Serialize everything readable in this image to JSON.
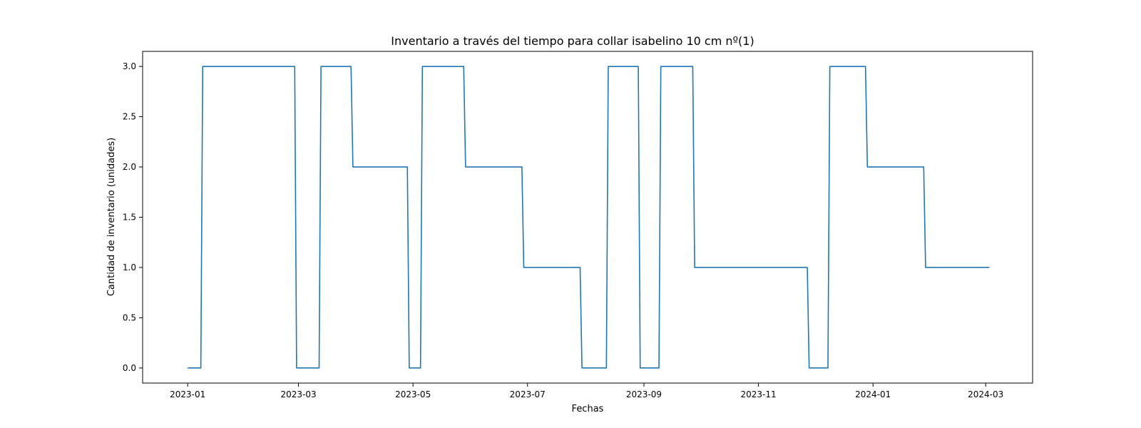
{
  "chart_data": {
    "type": "line",
    "title": "Inventario a través del tiempo para collar isabelino 10 cm nº(1)",
    "xlabel": "Fechas",
    "ylabel": "Cantidad de inventario (unidades)",
    "xlim": [
      "2022-12-08",
      "2024-03-26"
    ],
    "ylim": [
      -0.15,
      3.15
    ],
    "grid": false,
    "x_ticks": [
      "2023-01-01",
      "2023-03-01",
      "2023-05-01",
      "2023-07-01",
      "2023-09-01",
      "2023-11-01",
      "2024-01-01",
      "2024-03-01"
    ],
    "x_tick_labels": [
      "2023-01",
      "2023-03",
      "2023-05",
      "2023-07",
      "2023-09",
      "2023-11",
      "2024-01",
      "2024-03"
    ],
    "y_ticks": [
      0.0,
      0.5,
      1.0,
      1.5,
      2.0,
      2.5,
      3.0
    ],
    "y_tick_labels": [
      "0.0",
      "0.5",
      "1.0",
      "1.5",
      "2.0",
      "2.5",
      "3.0"
    ],
    "series": [
      {
        "name": "inventario",
        "color": "#1f77b4",
        "x": [
          "2023-01-01",
          "2023-01-08",
          "2023-01-09",
          "2023-02-27",
          "2023-02-28",
          "2023-03-12",
          "2023-03-13",
          "2023-03-29",
          "2023-03-30",
          "2023-04-28",
          "2023-04-29",
          "2023-05-05",
          "2023-05-06",
          "2023-05-28",
          "2023-05-29",
          "2023-06-28",
          "2023-06-29",
          "2023-07-29",
          "2023-07-30",
          "2023-08-12",
          "2023-08-13",
          "2023-08-29",
          "2023-08-30",
          "2023-09-09",
          "2023-09-10",
          "2023-09-27",
          "2023-09-28",
          "2023-11-27",
          "2023-11-28",
          "2023-12-08",
          "2023-12-09",
          "2023-12-28",
          "2023-12-29",
          "2024-01-28",
          "2024-01-29",
          "2024-03-03"
        ],
        "y": [
          0,
          0,
          3,
          3,
          0,
          0,
          3,
          3,
          2,
          2,
          0,
          0,
          3,
          3,
          2,
          2,
          1,
          1,
          0,
          0,
          3,
          3,
          0,
          0,
          3,
          3,
          1,
          1,
          0,
          0,
          3,
          3,
          2,
          2,
          1,
          1
        ]
      }
    ]
  }
}
